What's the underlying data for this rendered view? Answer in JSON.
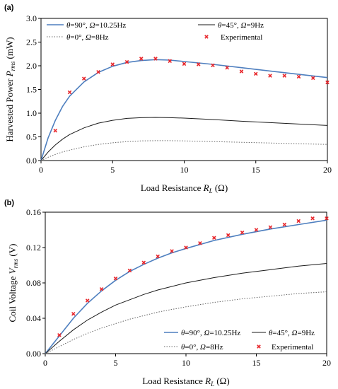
{
  "chart_data": [
    {
      "type": "line",
      "panel_label": "(a)",
      "xlabel": {
        "main": "Load Resistance ",
        "var": "R",
        "sub": "L",
        "unit": " (Ω)"
      },
      "ylabel": {
        "main": "Harvested Power ",
        "var": "P",
        "sub": "rms",
        "unit": " (mW)"
      },
      "xlim": [
        0,
        20
      ],
      "ylim": [
        0,
        3.0
      ],
      "x_ticks": [
        "0",
        "5",
        "10",
        "15",
        "20"
      ],
      "y_ticks": [
        "0.0",
        "0.5",
        "1.0",
        "1.5",
        "2.0",
        "2.5",
        "3.0"
      ],
      "x": [
        0,
        0.5,
        1,
        1.5,
        2,
        3,
        4,
        5,
        6,
        7,
        8,
        9,
        10,
        12,
        14,
        16,
        18,
        20
      ],
      "series": [
        {
          "name": {
            "a": "θ",
            "b": "=90°, ",
            "c": "Ω",
            "d": "=10.25Hz"
          },
          "style": "blue",
          "values": [
            0,
            0.48,
            0.85,
            1.14,
            1.36,
            1.66,
            1.86,
            1.99,
            2.07,
            2.11,
            2.13,
            2.12,
            2.09,
            2.03,
            1.96,
            1.89,
            1.82,
            1.75
          ]
        },
        {
          "name": {
            "a": "θ",
            "b": "=45°, ",
            "c": "Ω",
            "d": "=9Hz"
          },
          "style": "black",
          "values": [
            0,
            0.18,
            0.33,
            0.45,
            0.55,
            0.69,
            0.79,
            0.85,
            0.89,
            0.905,
            0.91,
            0.905,
            0.895,
            0.865,
            0.83,
            0.8,
            0.77,
            0.74
          ]
        },
        {
          "name": {
            "a": "θ",
            "b": "=0°, ",
            "c": "Ω",
            "d": "=8Hz"
          },
          "style": "dotted",
          "values": [
            0,
            0.07,
            0.13,
            0.18,
            0.22,
            0.29,
            0.34,
            0.375,
            0.4,
            0.415,
            0.42,
            0.42,
            0.415,
            0.4,
            0.385,
            0.37,
            0.355,
            0.34
          ]
        }
      ],
      "experimental": {
        "name": "Experimental",
        "x": [
          1,
          2,
          3,
          4,
          5,
          6,
          7,
          8,
          9,
          10,
          11,
          12,
          13,
          14,
          15,
          16,
          17,
          18,
          19,
          20
        ],
        "y": [
          0.63,
          1.44,
          1.73,
          1.87,
          2.03,
          2.08,
          2.15,
          2.15,
          2.1,
          2.04,
          2.03,
          2.01,
          1.96,
          1.88,
          1.83,
          1.79,
          1.79,
          1.77,
          1.74,
          1.65
        ]
      },
      "legend_placement": "top"
    },
    {
      "type": "line",
      "panel_label": "(b)",
      "xlabel": {
        "main": "Load Resistance ",
        "var": "R",
        "sub": "L",
        "unit": " (Ω)"
      },
      "ylabel": {
        "main": "Coil Voltage ",
        "var": "V",
        "sub": "rms",
        "unit": " (V)"
      },
      "xlim": [
        0,
        20
      ],
      "ylim": [
        0,
        0.16
      ],
      "x_ticks": [
        "0",
        "5",
        "10",
        "15",
        "20"
      ],
      "y_ticks": [
        "0.00",
        "0.04",
        "0.08",
        "0.12",
        "0.16"
      ],
      "x": [
        0,
        1,
        2,
        3,
        4,
        5,
        6,
        7,
        8,
        9,
        10,
        12,
        14,
        16,
        18,
        20
      ],
      "series": [
        {
          "name": {
            "a": "θ",
            "b": "=90°, ",
            "c": "Ω",
            "d": "=10.25Hz"
          },
          "style": "blue",
          "values": [
            0,
            0.02,
            0.04,
            0.057,
            0.071,
            0.083,
            0.093,
            0.101,
            0.108,
            0.114,
            0.119,
            0.128,
            0.135,
            0.141,
            0.146,
            0.151
          ]
        },
        {
          "name": {
            "a": "θ",
            "b": "=45°, ",
            "c": "Ω",
            "d": "=9Hz"
          },
          "style": "black",
          "values": [
            0,
            0.014,
            0.027,
            0.038,
            0.047,
            0.055,
            0.061,
            0.067,
            0.072,
            0.076,
            0.08,
            0.086,
            0.091,
            0.095,
            0.099,
            0.102
          ]
        },
        {
          "name": {
            "a": "θ",
            "b": "=0°, ",
            "c": "Ω",
            "d": "=8Hz"
          },
          "style": "dotted",
          "values": [
            0,
            0.008,
            0.016,
            0.023,
            0.029,
            0.034,
            0.039,
            0.043,
            0.047,
            0.05,
            0.053,
            0.058,
            0.062,
            0.065,
            0.068,
            0.07
          ]
        }
      ],
      "experimental": {
        "name": "Experimental",
        "x": [
          1,
          2,
          3,
          4,
          5,
          6,
          7,
          8,
          9,
          10,
          11,
          12,
          13,
          14,
          15,
          16,
          17,
          18,
          19,
          20
        ],
        "y": [
          0.021,
          0.045,
          0.06,
          0.073,
          0.085,
          0.094,
          0.103,
          0.11,
          0.116,
          0.12,
          0.125,
          0.131,
          0.134,
          0.137,
          0.14,
          0.143,
          0.146,
          0.15,
          0.153,
          0.153
        ]
      },
      "legend_placement": "bottom-right"
    }
  ],
  "colors": {
    "blue": "#4e7fbf",
    "black": "#1a1a1a",
    "dotted": "#666666",
    "marker": "#e8262b",
    "axis": "#000000"
  }
}
